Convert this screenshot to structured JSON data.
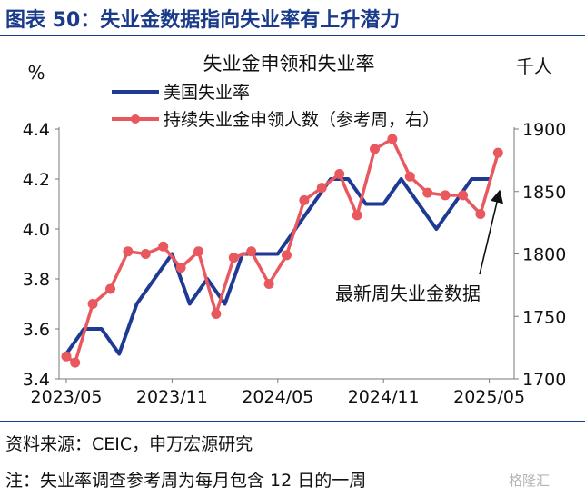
{
  "header": {
    "title": "图表 50：失业金数据指向失业率有上升潜力"
  },
  "chart_data": {
    "type": "line",
    "title": "失业金申领和失业率",
    "ylabel_left": "%",
    "ylabel_right": "千人",
    "left_ylim": [
      3.4,
      4.4
    ],
    "left_ticks": [
      "3.4",
      "3.6",
      "3.8",
      "4.0",
      "4.2",
      "4.4"
    ],
    "right_ylim": [
      1700,
      1900
    ],
    "right_ticks": [
      "1700",
      "1750",
      "1800",
      "1850",
      "1900"
    ],
    "xtick_labels": [
      "2023/05",
      "2023/11",
      "2024/05",
      "2024/11",
      "2025/05"
    ],
    "x_range": [
      0,
      25
    ],
    "legend_position": "top-left",
    "grid": false,
    "series": [
      {
        "name": "美国失业率",
        "axis": "left",
        "color": "#1f3a93",
        "x": [
          0,
          1,
          2,
          3,
          4,
          5,
          6,
          7,
          8,
          9,
          10,
          11,
          12,
          13,
          14,
          15,
          16,
          17,
          18,
          19,
          20,
          21,
          22,
          23,
          24
        ],
        "values": [
          3.5,
          3.6,
          3.6,
          3.5,
          3.7,
          3.8,
          3.9,
          3.7,
          3.8,
          3.7,
          3.9,
          3.9,
          3.9,
          4.0,
          4.1,
          4.2,
          4.2,
          4.1,
          4.1,
          4.2,
          4.1,
          4.0,
          4.1,
          4.2,
          4.2
        ]
      },
      {
        "name": "持续失业金申领人数（参考周，右）",
        "axis": "right",
        "color": "#e8585e",
        "x": [
          0,
          0.5,
          1.5,
          2.5,
          3.5,
          4.5,
          5.5,
          6.5,
          7.5,
          8.5,
          9.5,
          10.5,
          11.5,
          12.5,
          13.5,
          14.5,
          15.5,
          16.5,
          17.5,
          18.5,
          19.5,
          20.5,
          21.5,
          22.5,
          23.5,
          24.5
        ],
        "values": [
          1718,
          1713,
          1760,
          1772,
          1802,
          1800,
          1806,
          1789,
          1802,
          1752,
          1797,
          1802,
          1776,
          1799,
          1843,
          1853,
          1864,
          1831,
          1884,
          1892,
          1862,
          1849,
          1847,
          1847,
          1832,
          1881
        ]
      }
    ],
    "annotation": {
      "text": "最新周失业金数据"
    }
  },
  "footer": {
    "source": "资料来源：CEIC，申万宏源研究",
    "note": "注：失业率调查参考周为每月包含 12 日的一周"
  },
  "watermark": "格隆汇"
}
